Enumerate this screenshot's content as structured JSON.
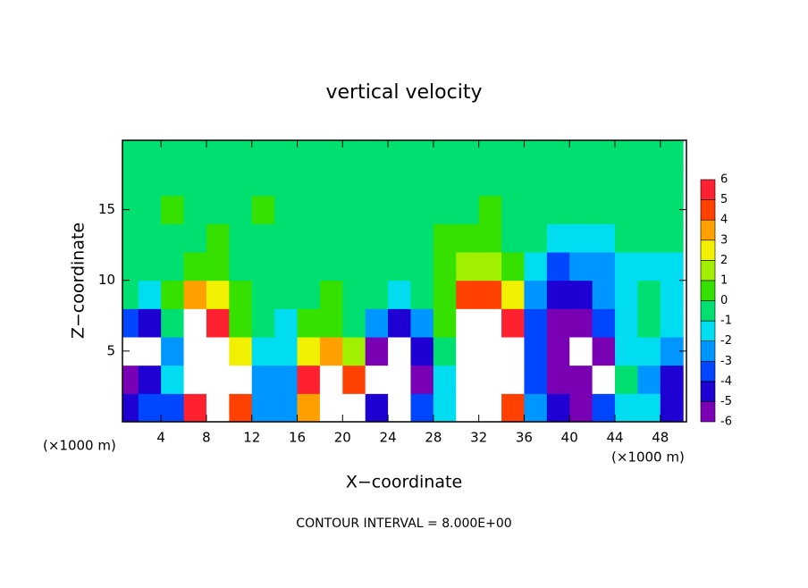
{
  "chart_data": {
    "type": "heatmap",
    "title": "vertical velocity",
    "x_label": "X−coordinate",
    "y_label": "Z−coordinate",
    "x_unit": "(×1000 m)",
    "footer": "CONTOUR INTERVAL = 8.000E+00",
    "x": [
      1,
      3,
      5,
      7,
      9,
      11,
      13,
      15,
      17,
      19,
      21,
      23,
      25,
      27,
      29,
      31,
      33,
      35,
      37,
      39,
      41,
      43,
      45,
      47,
      49
    ],
    "y": [
      1,
      3,
      5,
      7,
      9,
      11,
      13,
      15,
      17,
      19
    ],
    "values": [
      [
        -4,
        -3,
        -3,
        6,
        8,
        5,
        -2,
        -2,
        4,
        7,
        8,
        -4,
        -7,
        -3,
        -1,
        7,
        8,
        5,
        -2,
        -4,
        -5,
        -3,
        -1,
        -1,
        -4
      ],
      [
        -5,
        -4,
        -1,
        7,
        9,
        7,
        -2,
        -2,
        6,
        9,
        5,
        -7,
        -8,
        -5,
        -1,
        8,
        9,
        7,
        -3,
        -6,
        -5,
        -7,
        0,
        -2,
        -4
      ],
      [
        -7,
        -8,
        -2,
        8,
        8,
        3,
        -1,
        -1,
        3,
        4,
        2,
        -5,
        -8,
        -4,
        0,
        8,
        9,
        8,
        -3,
        -6,
        -7,
        -6,
        -1,
        -1,
        -2
      ],
      [
        -3,
        -4,
        0,
        7,
        6,
        1,
        0,
        -1,
        1,
        1,
        0,
        -2,
        -4,
        -2,
        1,
        7,
        8,
        6,
        -3,
        -6,
        -5,
        -3,
        -1,
        0,
        -1
      ],
      [
        0,
        -1,
        1,
        4,
        3,
        1,
        0,
        0,
        0,
        1,
        0,
        0,
        -1,
        0,
        1,
        5,
        5,
        3,
        -2,
        -4,
        -4,
        -2,
        -1,
        0,
        -1
      ],
      [
        0,
        0,
        0,
        1,
        1,
        0,
        0,
        0,
        0,
        0,
        0,
        0,
        0,
        0,
        1,
        2,
        2,
        1,
        -1,
        -3,
        -2,
        -2,
        -1,
        -1,
        -1
      ],
      [
        0,
        0,
        0,
        0,
        1,
        0,
        0,
        0,
        0,
        0,
        0,
        0,
        0,
        0,
        1,
        1,
        1,
        0,
        0,
        -1,
        -1,
        -1,
        0,
        0,
        0
      ],
      [
        0,
        0,
        1,
        0,
        0,
        0,
        1,
        0,
        0,
        0,
        0,
        0,
        0,
        0,
        0,
        0,
        1,
        0,
        0,
        0,
        0,
        0,
        0,
        0,
        0
      ],
      [
        0,
        0,
        0,
        0,
        0,
        0,
        0,
        0,
        0,
        0,
        0,
        0,
        0,
        0,
        0,
        0,
        0,
        0,
        0,
        0,
        0,
        0,
        0,
        0,
        0
      ],
      [
        0,
        0,
        0,
        0,
        0,
        0,
        0,
        0,
        0,
        0,
        0,
        0,
        0,
        0,
        0,
        0,
        0,
        0,
        0,
        0,
        0,
        0,
        0,
        0,
        0
      ]
    ],
    "xlim": [
      0.6,
      50.3
    ],
    "ylim": [
      0,
      19.9
    ],
    "xticks": [
      4,
      8,
      12,
      16,
      20,
      24,
      28,
      32,
      36,
      40,
      44,
      48
    ],
    "yticks": [
      5,
      10,
      15
    ],
    "levels": [
      -6,
      -5,
      -4,
      -3,
      -2,
      -1,
      0,
      1,
      2,
      3,
      4,
      5,
      6
    ],
    "colors": [
      "#7a00b4",
      "#1e00d2",
      "#0046ff",
      "#0096ff",
      "#00dcf0",
      "#00e070",
      "#36e000",
      "#a0f000",
      "#f0f000",
      "#ffa000",
      "#ff4000",
      "#ff2030"
    ],
    "out_of_range_color": "#ffffff"
  }
}
